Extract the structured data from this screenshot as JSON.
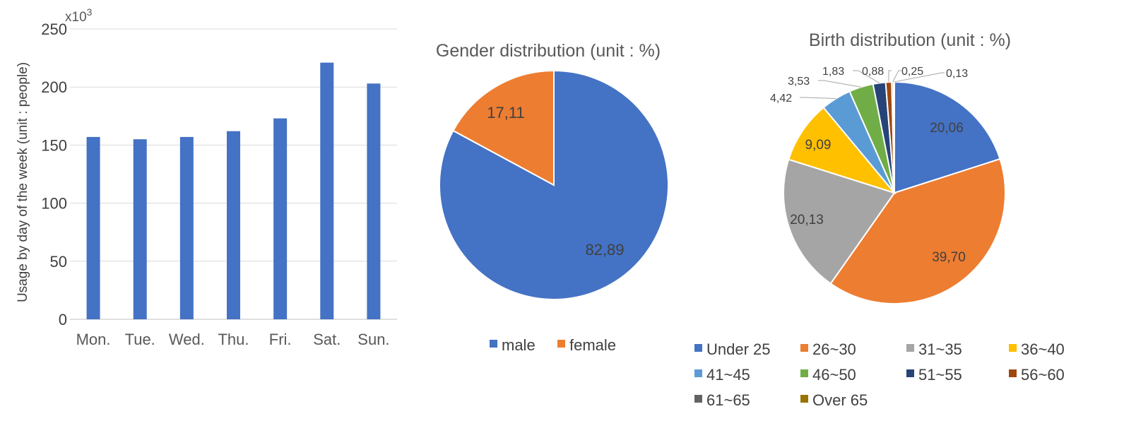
{
  "chart_data": [
    {
      "type": "bar",
      "ylabel": "Usage by day of the week (unit : people)",
      "multiplier_label": "x10",
      "multiplier_exp": "3",
      "categories": [
        "Mon.",
        "Tue.",
        "Wed.",
        "Thu.",
        "Fri.",
        "Sat.",
        "Sun."
      ],
      "values": [
        157,
        155,
        157,
        162,
        173,
        221,
        203
      ],
      "ylim": [
        0,
        250
      ],
      "yticks": [
        0,
        50,
        100,
        150,
        200,
        250
      ],
      "grid": true,
      "color": "#4472C4"
    },
    {
      "type": "pie",
      "title": "Gender distribution (unit : %)",
      "labels": [
        "male",
        "female"
      ],
      "values": [
        82.89,
        17.11
      ],
      "value_labels": [
        "82,89",
        "17,11"
      ],
      "colors": [
        "#4472C4",
        "#ED7D31"
      ],
      "legend": "bottom"
    },
    {
      "type": "pie",
      "title": "Birth distribution (unit : %)",
      "labels": [
        "Under 25",
        "26~30",
        "31~35",
        "36~40",
        "41~45",
        "46~50",
        "51~55",
        "56~60",
        "61~65",
        "Over 65"
      ],
      "values": [
        20.06,
        39.7,
        20.13,
        9.09,
        4.42,
        3.53,
        1.83,
        0.88,
        0.25,
        0.13
      ],
      "value_labels": [
        "20,06",
        "39,70",
        "20,13",
        "9,09",
        "4,42",
        "3,53",
        "1,83",
        "0,88",
        "0,25",
        "0,13"
      ],
      "colors": [
        "#4472C4",
        "#ED7D31",
        "#A5A5A5",
        "#FFC000",
        "#5B9BD5",
        "#70AD47",
        "#264478",
        "#9E480E",
        "#636363",
        "#997300"
      ],
      "legend": "bottom"
    }
  ]
}
